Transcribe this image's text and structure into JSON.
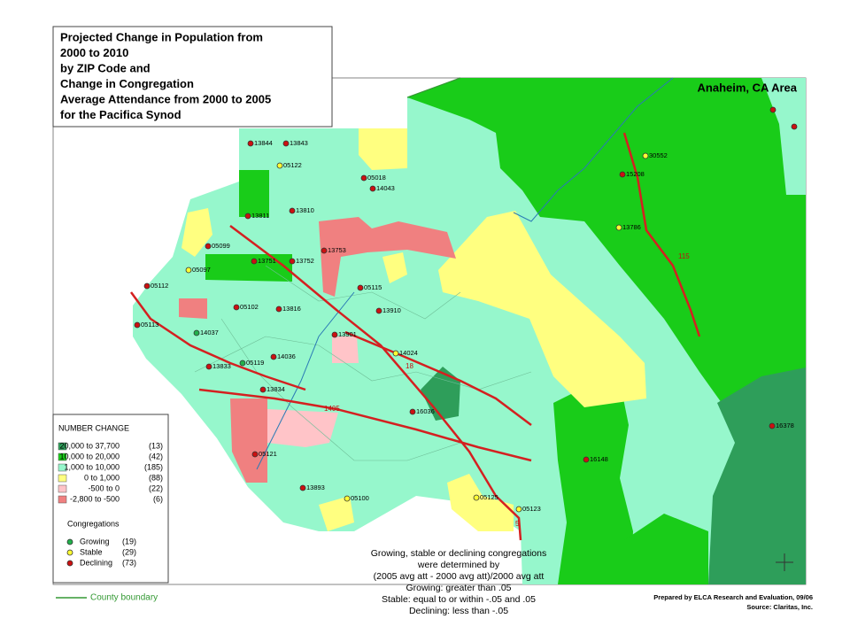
{
  "title_lines": [
    "Projected Change in Population from",
    "2000 to 2010",
    "by ZIP Code and",
    "Change in Congregation",
    "Average Attendance from 2000 to 2005",
    "for the Pacifica Synod"
  ],
  "area_label": "Anaheim, CA Area",
  "legend": {
    "title": "NUMBER CHANGE",
    "items": [
      {
        "range": "20,000 to 37,700",
        "count": "(13)",
        "color": "#2e9e5a"
      },
      {
        "range": "10,000 to 20,000",
        "count": "(42)",
        "color": "#19cc19"
      },
      {
        "range": "1,000 to 10,000",
        "count": "(185)",
        "color": "#96f7cc"
      },
      {
        "range": "0 to 1,000",
        "count": "(88)",
        "color": "#ffff80"
      },
      {
        "range": "-500 to 0",
        "count": "(22)",
        "color": "#ffc4c8"
      },
      {
        "range": "-2,800 to -500",
        "count": "(6)",
        "color": "#f08080"
      }
    ]
  },
  "congregations": {
    "title": "Congregations",
    "items": [
      {
        "name": "Growing",
        "count": "(19)",
        "color": "#22b14c"
      },
      {
        "name": "Stable",
        "count": "(29)",
        "color": "#ffff33"
      },
      {
        "name": "Declining",
        "count": "(73)",
        "color": "#cc1111"
      }
    ]
  },
  "county_boundary": "County boundary",
  "note_lines": [
    "Growing, stable or declining congregations",
    "were determined by",
    "(2005 avg att - 2000 avg att)/2000 avg att",
    "Growing: greater than .05",
    "Stable: equal to or within -.05 and .05",
    "Declining: less than -.05"
  ],
  "credits": [
    "Prepared by ELCA Research and Evaluation, 09/06",
    "Source: Claritas, Inc."
  ],
  "highway_labels": [
    "1405",
    "18",
    "115",
    "5"
  ],
  "sites": [
    {
      "label": "13844",
      "status": "Declining"
    },
    {
      "label": "13843",
      "status": "Declining"
    },
    {
      "label": "05122",
      "status": "Stable"
    },
    {
      "label": "05018",
      "status": "Declining"
    },
    {
      "label": "14043",
      "status": "Declining"
    },
    {
      "label": "30552",
      "status": "Stable"
    },
    {
      "label": "15208",
      "status": "Declining"
    },
    {
      "label": "13811",
      "status": "Declining"
    },
    {
      "label": "13810",
      "status": "Declining"
    },
    {
      "label": "13786",
      "status": "Stable"
    },
    {
      "label": "05099",
      "status": "Declining"
    },
    {
      "label": "13753",
      "status": "Declining"
    },
    {
      "label": "13751",
      "status": "Declining"
    },
    {
      "label": "13752",
      "status": "Declining"
    },
    {
      "label": "05097",
      "status": "Stable"
    },
    {
      "label": "05112",
      "status": "Declining"
    },
    {
      "label": "05115",
      "status": "Declining"
    },
    {
      "label": "05102",
      "status": "Declining"
    },
    {
      "label": "13816",
      "status": "Declining"
    },
    {
      "label": "13910",
      "status": "Declining"
    },
    {
      "label": "05113",
      "status": "Declining"
    },
    {
      "label": "14037",
      "status": "Growing"
    },
    {
      "label": "13901",
      "status": "Declining"
    },
    {
      "label": "14024",
      "status": "Stable"
    },
    {
      "label": "14036",
      "status": "Declining"
    },
    {
      "label": "05119",
      "status": "Growing"
    },
    {
      "label": "13833",
      "status": "Declining"
    },
    {
      "label": "13834",
      "status": "Declining"
    },
    {
      "label": "16036",
      "status": "Declining"
    },
    {
      "label": "16378",
      "status": "Declining"
    },
    {
      "label": "05121",
      "status": "Declining"
    },
    {
      "label": "16148",
      "status": "Declining"
    },
    {
      "label": "13893",
      "status": "Declining"
    },
    {
      "label": "05100",
      "status": "Stable"
    },
    {
      "label": "05125",
      "status": "Stable"
    },
    {
      "label": "05123",
      "status": "Stable"
    },
    {
      "label": null,
      "status": "Declining"
    },
    {
      "label": null,
      "status": "Declining"
    }
  ]
}
